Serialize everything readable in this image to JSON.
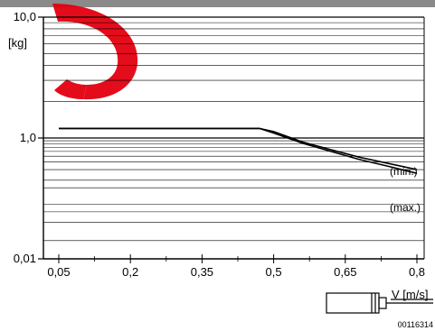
{
  "chart_data": {
    "type": "line",
    "yscale": "log",
    "ylim": [
      0.01,
      10.0
    ],
    "xlim": [
      0.05,
      0.8
    ],
    "xticks": [
      "0,05",
      "0,2",
      "0,35",
      "0,5",
      "0,65",
      "0,8"
    ],
    "xtick_values": [
      0.05,
      0.2,
      0.35,
      0.5,
      0.65,
      0.8
    ],
    "yticks": [
      "10,0",
      "1,0",
      "0,01"
    ],
    "ytick_values": [
      10.0,
      1.0,
      0.01
    ],
    "ylabel": "[kg]",
    "xlabel": "V [m/s]",
    "grid": "horizontal",
    "series": [
      {
        "name": "(min.)",
        "x": [
          0.05,
          0.36,
          0.47,
          0.5,
          0.56,
          0.62,
          0.68,
          0.74,
          0.8
        ],
        "y": [
          1.2,
          1.2,
          1.2,
          1.13,
          0.86,
          0.64,
          0.48,
          0.38,
          0.3
        ]
      },
      {
        "name": "(max.)",
        "x": [
          0.05,
          0.36,
          0.47,
          0.5,
          0.56,
          0.62,
          0.68,
          0.74,
          0.8
        ],
        "y": [
          1.2,
          1.2,
          1.2,
          1.1,
          0.82,
          0.6,
          0.44,
          0.34,
          0.26
        ]
      }
    ]
  },
  "figure_id": "00116314",
  "colors": {
    "watermark": "#e3000f",
    "top_band": "#8a8a8a",
    "line": "#000000"
  }
}
